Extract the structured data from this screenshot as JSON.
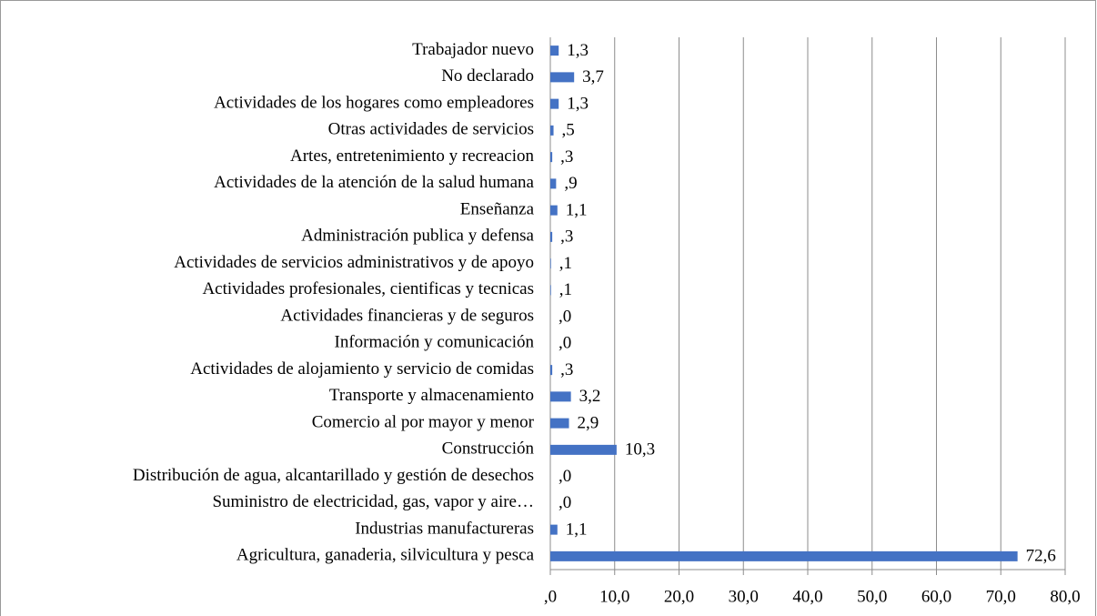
{
  "chart_data": {
    "type": "bar",
    "orientation": "horizontal",
    "categories": [
      "Trabajador nuevo",
      "No declarado",
      "Actividades de los hogares como empleadores",
      "Otras actividades de servicios",
      "Artes, entretenimiento y recreacion",
      "Actividades de la atención de la salud humana",
      "Enseñanza",
      "Administración publica y defensa",
      "Actividades de servicios administrativos y de apoyo",
      "Actividades profesionales, cientificas y tecnicas",
      "Actividades financieras y de seguros",
      "Información y comunicación",
      "Actividades de alojamiento y servicio de comidas",
      "Transporte y almacenamiento",
      "Comercio al por mayor y menor",
      "Construcción",
      "Distribución de agua, alcantarillado y gestión de desechos",
      "Suministro de electricidad, gas, vapor y aire…",
      "Industrias manufactureras",
      "Agricultura, ganaderia, silvicultura y pesca"
    ],
    "values": [
      1.3,
      3.7,
      1.3,
      0.5,
      0.3,
      0.9,
      1.1,
      0.3,
      0.1,
      0.1,
      0.0,
      0.0,
      0.3,
      3.2,
      2.9,
      10.3,
      0.0,
      0.0,
      1.1,
      72.6
    ],
    "value_labels": [
      "1,3",
      "3,7",
      "1,3",
      ",5",
      ",3",
      ",9",
      "1,1",
      ",3",
      ",1",
      ",1",
      ",0",
      ",0",
      ",3",
      "3,2",
      "2,9",
      "10,3",
      ",0",
      ",0",
      "1,1",
      "72,6"
    ],
    "color": "#4472c4",
    "xlim": [
      0,
      80
    ],
    "xticks": [
      {
        "value": 0,
        "label": ",0"
      },
      {
        "value": 10,
        "label": "10,0"
      },
      {
        "value": 20,
        "label": "20,0"
      },
      {
        "value": 30,
        "label": "30,0"
      },
      {
        "value": 40,
        "label": "40,0"
      },
      {
        "value": 50,
        "label": "50,0"
      },
      {
        "value": 60,
        "label": "60,0"
      },
      {
        "value": 70,
        "label": "70,0"
      },
      {
        "value": 80,
        "label": "80,0"
      }
    ],
    "grid": true
  }
}
